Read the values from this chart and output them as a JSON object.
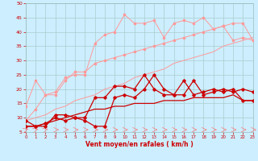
{
  "xlabel": "Vent moyen/en rafales ( km/h )",
  "background_color": "#cceeff",
  "grid_color": "#aacccc",
  "x": [
    0,
    1,
    2,
    3,
    4,
    5,
    6,
    7,
    8,
    9,
    10,
    11,
    12,
    13,
    14,
    15,
    16,
    17,
    18,
    19,
    20,
    21,
    22,
    23
  ],
  "ylim": [
    5,
    50
  ],
  "xlim": [
    0,
    23
  ],
  "yticks": [
    5,
    10,
    15,
    20,
    25,
    30,
    35,
    40,
    45,
    50
  ],
  "xticks": [
    0,
    1,
    2,
    3,
    4,
    5,
    6,
    7,
    8,
    9,
    10,
    11,
    12,
    13,
    14,
    15,
    16,
    17,
    18,
    19,
    20,
    21,
    22,
    23
  ],
  "line_pink_scatter1_y": [
    9,
    13,
    18,
    19,
    24,
    25,
    25,
    36,
    39,
    40,
    46,
    43,
    43,
    44,
    38,
    43,
    44,
    43,
    45,
    41,
    42,
    37,
    38,
    37
  ],
  "line_pink_linear1_y": [
    9,
    10,
    11,
    13,
    14,
    16,
    17,
    18,
    20,
    21,
    22,
    24,
    25,
    26,
    27,
    29,
    30,
    31,
    32,
    33,
    35,
    36,
    37,
    38
  ],
  "line_pink_scatter2_y": [
    14,
    23,
    18,
    18,
    23,
    26,
    26,
    29,
    30,
    31,
    32,
    33,
    34,
    35,
    36,
    37,
    38,
    39,
    40,
    41,
    42,
    43,
    43,
    37
  ],
  "line_red_scatter1_y": [
    7,
    7,
    8,
    10,
    9,
    10,
    10,
    17,
    17,
    21,
    21,
    20,
    25,
    20,
    18,
    18,
    23,
    18,
    19,
    20,
    19,
    20,
    16,
    16
  ],
  "line_red_linear1_y": [
    7,
    7,
    8,
    9,
    10,
    11,
    12,
    13,
    13,
    14,
    14,
    15,
    15,
    15,
    16,
    16,
    16,
    17,
    17,
    17,
    17,
    18,
    16,
    16
  ],
  "line_red_scatter2_y": [
    9,
    7,
    7,
    11,
    11,
    10,
    9,
    7,
    7,
    17,
    18,
    17,
    20,
    25,
    20,
    18,
    18,
    23,
    18,
    19,
    20,
    19,
    20,
    19
  ],
  "pink_color": "#ff9999",
  "red_color": "#cc0000",
  "axis_label_color": "#cc0000",
  "tick_color": "#cc0000",
  "arrow_color": "#ff7777"
}
